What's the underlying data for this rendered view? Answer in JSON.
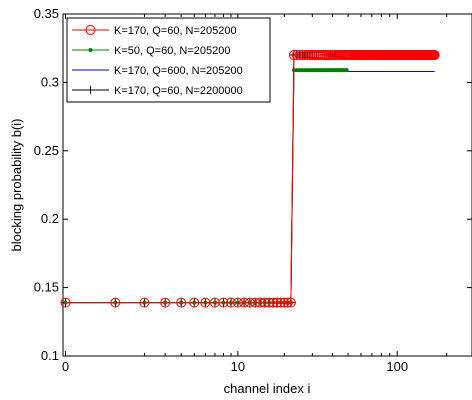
{
  "chart_data": {
    "type": "line",
    "title": "",
    "xlabel": "channel index i",
    "ylabel": "blocking probability b(i)",
    "x_scale": "log(1+i)",
    "xlim": [
      0,
      200
    ],
    "ylim": [
      0.1,
      0.35
    ],
    "x_ticks": [
      0,
      10,
      100
    ],
    "x_tick_labels": [
      "0",
      "10",
      "100"
    ],
    "y_ticks": [
      0.1,
      0.15,
      0.2,
      0.25,
      0.3,
      0.35
    ],
    "y_tick_labels": [
      "0.1",
      "0.15",
      "0.2",
      "0.25",
      "0.3",
      "0.35"
    ],
    "grid": false,
    "legend_position": "top-left",
    "series": [
      {
        "name": "K=170, Q=60, N=205200",
        "color": "#ff0000",
        "marker": "circle-open",
        "segments": [
          {
            "x_from": 0,
            "x_to": 22,
            "y": 0.139
          },
          {
            "x_from": 23,
            "x_to": 169,
            "y": 0.32
          }
        ]
      },
      {
        "name": "K=50, Q=60, N=205200",
        "color": "#008000",
        "marker": "dot",
        "segments": [
          {
            "x_from": 0,
            "x_to": 22,
            "y": 0.139
          },
          {
            "x_from": 23,
            "x_to": 49,
            "y": 0.309
          }
        ]
      },
      {
        "name": "K=170, Q=600, N=205200",
        "color": "#0000ff",
        "marker": "none",
        "segments": [
          {
            "x_from": 0,
            "x_to": 22,
            "y": 0.139
          },
          {
            "x_from": 23,
            "x_to": 169,
            "y": 0.308
          }
        ]
      },
      {
        "name": "K=170, Q=60, N=2200000",
        "color": "#000000",
        "marker": "plus",
        "segments": [
          {
            "x_from": 0,
            "x_to": 22,
            "y": 0.139
          },
          {
            "x_from": 23,
            "x_to": 169,
            "y": 0.32
          }
        ]
      }
    ]
  }
}
